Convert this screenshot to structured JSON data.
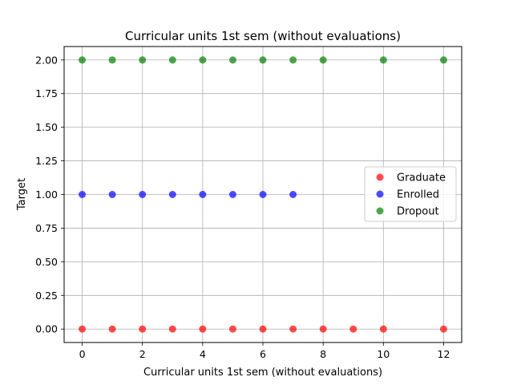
{
  "chart_data": {
    "type": "scatter",
    "title": "Curricular units 1st sem (without evaluations)",
    "xlabel": "Curricular units 1st sem (without evaluations)",
    "ylabel": "Target",
    "xlim": [
      -0.6,
      12.6
    ],
    "ylim": [
      -0.1,
      2.1
    ],
    "x_ticks": [
      0,
      2,
      4,
      6,
      8,
      10,
      12
    ],
    "y_ticks": [
      0.0,
      0.25,
      0.5,
      0.75,
      1.0,
      1.25,
      1.5,
      1.75,
      2.0
    ],
    "x_tick_labels": [
      "0",
      "2",
      "4",
      "6",
      "8",
      "10",
      "12"
    ],
    "y_tick_labels": [
      "0.00",
      "0.25",
      "0.50",
      "0.75",
      "1.00",
      "1.25",
      "1.50",
      "1.75",
      "2.00"
    ],
    "grid": true,
    "legend_position": "center-right",
    "series": [
      {
        "name": "Graduate",
        "color": "#ff0000",
        "x": [
          0,
          1,
          2,
          3,
          4,
          5,
          6,
          7,
          8,
          9,
          10,
          12
        ],
        "y": [
          0,
          0,
          0,
          0,
          0,
          0,
          0,
          0,
          0,
          0,
          0,
          0
        ]
      },
      {
        "name": "Enrolled",
        "color": "#0000ff",
        "x": [
          0,
          1,
          2,
          3,
          4,
          5,
          6,
          7
        ],
        "y": [
          1,
          1,
          1,
          1,
          1,
          1,
          1,
          1
        ]
      },
      {
        "name": "Dropout",
        "color": "#008000",
        "x": [
          0,
          1,
          2,
          3,
          4,
          5,
          6,
          7,
          8,
          10,
          12
        ],
        "y": [
          2,
          2,
          2,
          2,
          2,
          2,
          2,
          2,
          2,
          2,
          2
        ]
      }
    ]
  }
}
